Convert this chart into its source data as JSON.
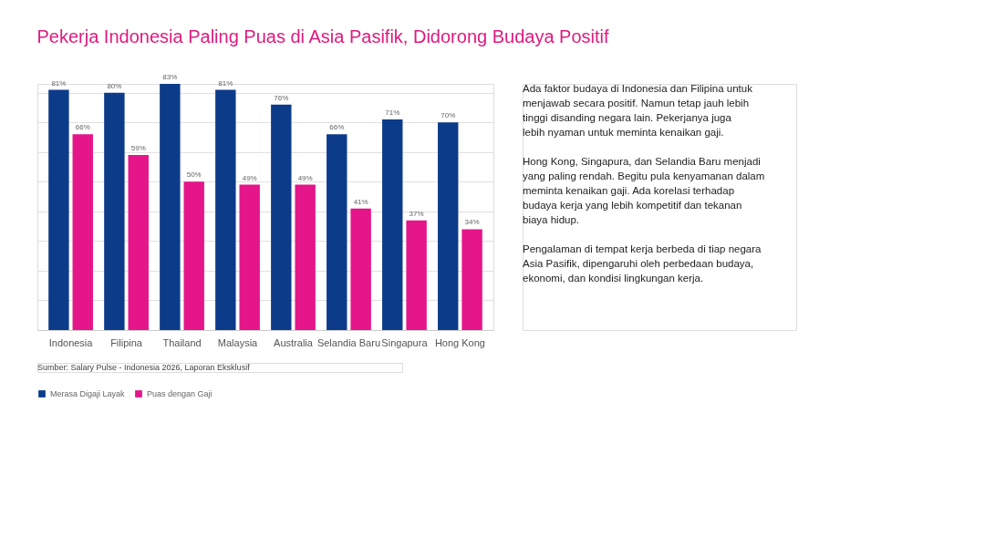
{
  "chart_data": {
    "type": "bar",
    "title": "Pekerja Indonesia Paling Puas di Asia Pasifik, Didorong Budaya Positif",
    "categories": [
      "Indonesia",
      "Filipina",
      "Thailand",
      "Malaysia",
      "Australia",
      "Selandia Baru",
      "Singapura",
      "Hong Kong"
    ],
    "series": [
      {
        "name": "Merasa Digaji Layak",
        "color": "#0c3b8a",
        "values": [
          81,
          80,
          83,
          81,
          76,
          66,
          71,
          70
        ],
        "value_labels": [
          "81%",
          "80%",
          "83%",
          "81%",
          "76%",
          "66%",
          "71%",
          "70%"
        ]
      },
      {
        "name": "Puas dengan Gaji",
        "color": "#e5158a",
        "values": [
          66,
          59,
          50,
          49,
          49,
          41,
          37,
          34
        ],
        "value_labels": [
          "66%",
          "59%",
          "50%",
          "49%",
          "49%",
          "41%",
          "37%",
          "34%"
        ]
      }
    ],
    "grid": "y",
    "legend": "bottom",
    "annotations": [
      "Ada faktor budaya di Indonesia dan Filipina untuk menjawab secara positif. Namun tetap jauh lebih tinggi disanding negara lain. Pekerjanya juga lebih nyaman untuk meminta kenaikan gaji.",
      "Hong Kong, Singapura, dan Selandia Baru menjadi yang paling rendah. Begitu pula kenyamanan dalam meminta kenaikan gaji. Ada korelasi terhadap budaya kerja yang lebih kompetitif dan tekanan biaya hidup.",
      "Pengalaman di tempat kerja berbeda di tiap negara Asia Pasifik, dipengaruhi oleh perbedaan budaya, ekonomi, dan kondisi lingkungan kerja.",
      "Sumber: Salary Pulse - Indonesia 2026, Laporan Eksklusif"
    ]
  }
}
